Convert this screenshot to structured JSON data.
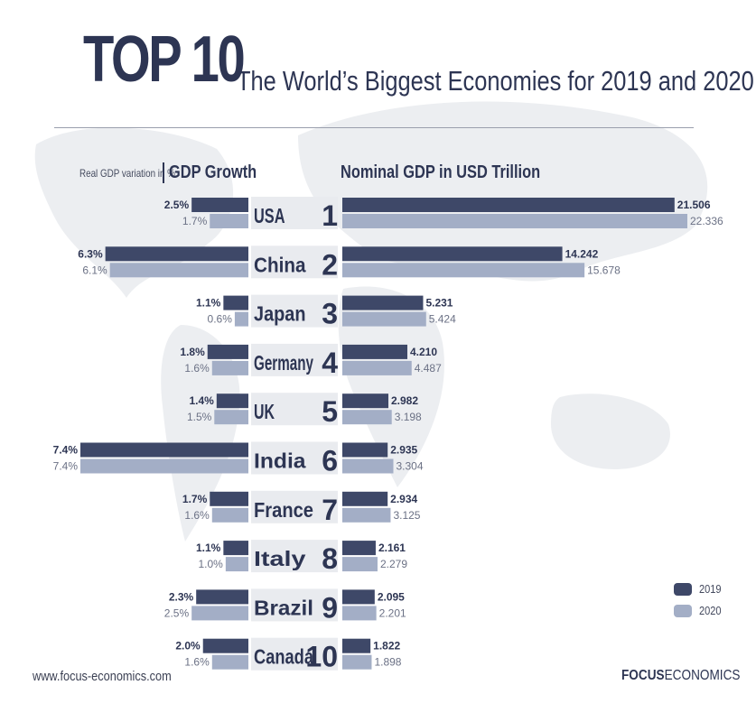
{
  "header": {
    "top_label": "TOP 10",
    "subtitle": "The World’s Biggest Economies for 2019 and 2020"
  },
  "left_panel": {
    "small_label": "Real GDP variation in %",
    "title": "GDP Growth"
  },
  "right_panel": {
    "title": "Nominal GDP in USD Trillion"
  },
  "colors": {
    "y2019": "#3e4868",
    "y2020": "#a3aec6",
    "text": "#2d3553",
    "label_band": "#e9ebef"
  },
  "chart_data": {
    "type": "bar",
    "layout": "butterfly",
    "categories": [
      "USA",
      "China",
      "Japan",
      "Germany",
      "UK",
      "India",
      "France",
      "Italy",
      "Brazil",
      "Canada"
    ],
    "ranks": [
      "1",
      "2",
      "3",
      "4",
      "5",
      "6",
      "7",
      "8",
      "9",
      "10"
    ],
    "gdp_growth": {
      "title": "GDP Growth",
      "unit": "%",
      "series": [
        {
          "name": "2019",
          "values": [
            2.5,
            6.3,
            1.1,
            1.8,
            1.4,
            7.4,
            1.7,
            1.1,
            2.3,
            2.0
          ],
          "labels": [
            "2.5%",
            "6.3%",
            "1.1%",
            "1.8%",
            "1.4%",
            "7.4%",
            "1.7%",
            "1.1%",
            "2.3%",
            "2.0%"
          ]
        },
        {
          "name": "2020",
          "values": [
            1.7,
            6.1,
            0.6,
            1.6,
            1.5,
            7.4,
            1.6,
            1.0,
            2.5,
            1.6
          ],
          "labels": [
            "1.7%",
            "6.1%",
            "0.6%",
            "1.6%",
            "1.5%",
            "7.4%",
            "1.6%",
            "1.0%",
            "2.5%",
            "1.6%"
          ]
        }
      ]
    },
    "nominal_gdp": {
      "title": "Nominal GDP in USD Trillion",
      "series": [
        {
          "name": "2019",
          "values": [
            21.506,
            14.242,
            5.231,
            4.21,
            2.982,
            2.935,
            2.934,
            2.161,
            2.095,
            1.822
          ],
          "labels": [
            "21.506",
            "14.242",
            "5.231",
            "4.210",
            "2.982",
            "2.935",
            "2.934",
            "2.161",
            "2.095",
            "1.822"
          ]
        },
        {
          "name": "2020",
          "values": [
            22.336,
            15.678,
            5.424,
            4.487,
            3.198,
            3.304,
            3.125,
            2.279,
            2.201,
            1.898
          ],
          "labels": [
            "22.336",
            "15.678",
            "5.424",
            "4.487",
            "3.198",
            "3.304",
            "3.125",
            "2.279",
            "2.201",
            "1.898"
          ]
        }
      ]
    },
    "legend": [
      "2019",
      "2020"
    ],
    "legend_position": "bottom-right"
  },
  "footer": {
    "website": "www.focus-economics.com",
    "brand_bold": "FOCUS",
    "brand_light": "ECONOMICS"
  }
}
